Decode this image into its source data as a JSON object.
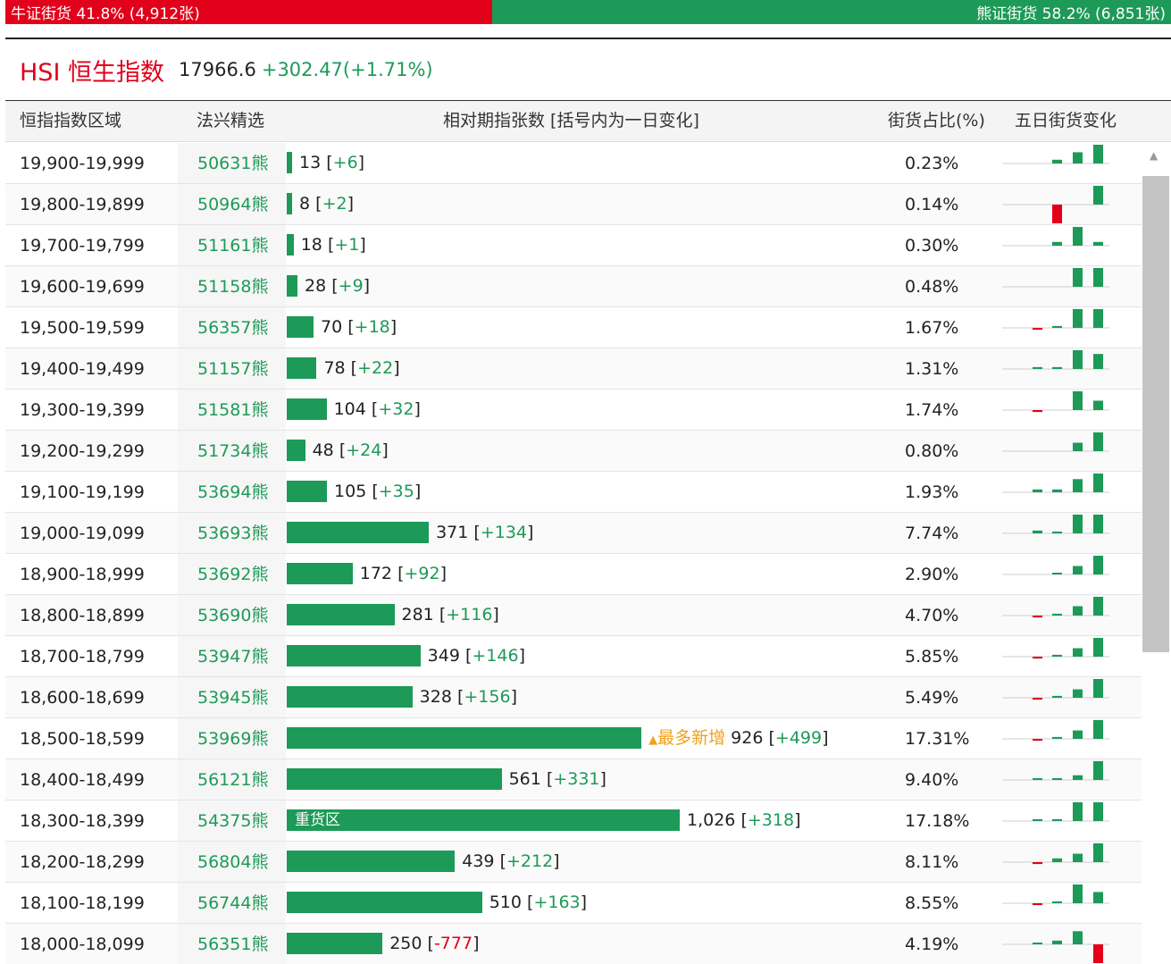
{
  "ratio": {
    "bull_label": "牛证街货 41.8% (4,912张)",
    "bull_pct": 41.8,
    "bear_label": "熊证街货 58.2% (6,851张)",
    "bear_pct": 58.2
  },
  "index": {
    "name": "HSI 恒生指数",
    "value": "17966.6",
    "change": "+302.47(+1.71%)"
  },
  "columns": {
    "range": "恒指指数区域",
    "code": "法兴精选",
    "count": "相对期指张数 [括号内为一日变化]",
    "share": "街货占比(%)",
    "trend": "五日街货变化"
  },
  "labels": {
    "most_added": "最多新增",
    "heavy_zone": "重货区",
    "bracket_open": "[",
    "bracket_close": "]"
  },
  "colors": {
    "up": "#1d9a57",
    "down": "#e2001a",
    "highlight": "#f0a11c"
  },
  "rows": [
    {
      "range": "19,900-19,999",
      "code": "50631熊",
      "count": "13",
      "count_value": 13,
      "change": "+6",
      "pct": "0.23%",
      "spark": [
        0,
        0,
        0.2,
        0.6,
        1
      ]
    },
    {
      "range": "19,800-19,899",
      "code": "50964熊",
      "count": "8",
      "count_value": 8,
      "change": "+2",
      "pct": "0.14%",
      "spark": [
        0,
        0,
        -1,
        0,
        1
      ]
    },
    {
      "range": "19,700-19,799",
      "code": "51161熊",
      "count": "18",
      "count_value": 18,
      "change": "+1",
      "pct": "0.30%",
      "spark": [
        0,
        0,
        0.2,
        1,
        0.2
      ]
    },
    {
      "range": "19,600-19,699",
      "code": "51158熊",
      "count": "28",
      "count_value": 28,
      "change": "+9",
      "pct": "0.48%",
      "spark": [
        0,
        0,
        0,
        1,
        1
      ]
    },
    {
      "range": "19,500-19,599",
      "code": "56357熊",
      "count": "70",
      "count_value": 70,
      "change": "+18",
      "pct": "1.67%",
      "spark": [
        0,
        -0.1,
        0.1,
        1,
        1
      ]
    },
    {
      "range": "19,400-19,499",
      "code": "51157熊",
      "count": "78",
      "count_value": 78,
      "change": "+22",
      "pct": "1.31%",
      "spark": [
        0,
        0.1,
        0.1,
        1,
        0.8
      ]
    },
    {
      "range": "19,300-19,399",
      "code": "51581熊",
      "count": "104",
      "count_value": 104,
      "change": "+32",
      "pct": "1.74%",
      "spark": [
        0,
        -0.1,
        0,
        1,
        0.5
      ]
    },
    {
      "range": "19,200-19,299",
      "code": "51734熊",
      "count": "48",
      "count_value": 48,
      "change": "+24",
      "pct": "0.80%",
      "spark": [
        0,
        0,
        0,
        0.45,
        1
      ]
    },
    {
      "range": "19,100-19,199",
      "code": "53694熊",
      "count": "105",
      "count_value": 105,
      "change": "+35",
      "pct": "1.93%",
      "spark": [
        0,
        0.15,
        0.15,
        0.7,
        1
      ]
    },
    {
      "range": "19,000-19,099",
      "code": "53693熊",
      "count": "371",
      "count_value": 371,
      "change": "+134",
      "pct": "7.74%",
      "spark": [
        0,
        0.15,
        0.05,
        1,
        1
      ]
    },
    {
      "range": "18,900-18,999",
      "code": "53692熊",
      "count": "172",
      "count_value": 172,
      "change": "+92",
      "pct": "2.90%",
      "spark": [
        0,
        0,
        0.05,
        0.45,
        1
      ]
    },
    {
      "range": "18,800-18,899",
      "code": "53690熊",
      "count": "281",
      "count_value": 281,
      "change": "+116",
      "pct": "4.70%",
      "spark": [
        0,
        -0.1,
        0.1,
        0.5,
        1
      ]
    },
    {
      "range": "18,700-18,799",
      "code": "53947熊",
      "count": "349",
      "count_value": 349,
      "change": "+146",
      "pct": "5.85%",
      "spark": [
        0,
        -0.1,
        0.1,
        0.45,
        1
      ]
    },
    {
      "range": "18,600-18,699",
      "code": "53945熊",
      "count": "328",
      "count_value": 328,
      "change": "+156",
      "pct": "5.49%",
      "spark": [
        0,
        -0.1,
        0.1,
        0.45,
        1
      ]
    },
    {
      "range": "18,500-18,599",
      "code": "53969熊",
      "count": "926",
      "count_value": 926,
      "change": "+499",
      "pct": "17.31%",
      "spark": [
        0,
        -0.1,
        0.1,
        0.45,
        1
      ],
      "tag": "most"
    },
    {
      "range": "18,400-18,499",
      "code": "56121熊",
      "count": "561",
      "count_value": 561,
      "change": "+331",
      "pct": "9.40%",
      "spark": [
        0,
        0.05,
        0.05,
        0.25,
        1
      ]
    },
    {
      "range": "18,300-18,399",
      "code": "54375熊",
      "count": "1,026",
      "count_value": 1026,
      "change": "+318",
      "pct": "17.18%",
      "spark": [
        0,
        0.1,
        0.1,
        1,
        1
      ],
      "tag": "heavy"
    },
    {
      "range": "18,200-18,299",
      "code": "56804熊",
      "count": "439",
      "count_value": 439,
      "change": "+212",
      "pct": "8.11%",
      "spark": [
        0,
        -0.1,
        0.2,
        0.45,
        1
      ]
    },
    {
      "range": "18,100-18,199",
      "code": "56744熊",
      "count": "510",
      "count_value": 510,
      "change": "+163",
      "pct": "8.55%",
      "spark": [
        0,
        -0.1,
        0.1,
        1,
        0.6
      ]
    },
    {
      "range": "18,000-18,099",
      "code": "56351熊",
      "count": "250",
      "count_value": 250,
      "change": "-777",
      "pct": "4.19%",
      "spark": [
        0,
        0.05,
        0.2,
        0.7,
        -1
      ]
    }
  ]
}
